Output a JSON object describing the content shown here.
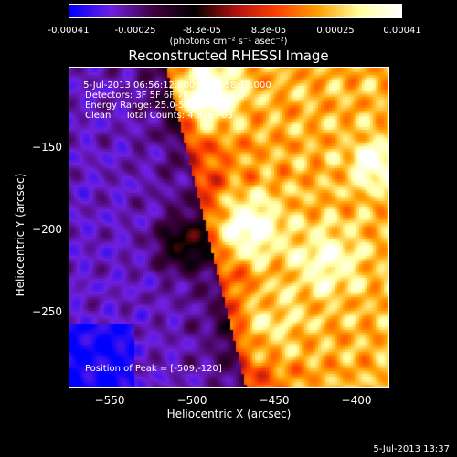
{
  "colorbar": {
    "ticks": [
      "-0.00041",
      "-0.00025",
      "-8.3e-05",
      "8.3e-05",
      "0.00025",
      "0.00041"
    ],
    "tick_values": [
      -0.00041,
      -0.00025,
      -8.3e-05,
      8.3e-05,
      0.00025,
      0.00041
    ],
    "units": "(photons cm⁻² s⁻¹ asec⁻²)",
    "colors": [
      "#0000ff",
      "#7020e0",
      "#400040",
      "#000000",
      "#b01010",
      "#ff4000",
      "#ffa000",
      "#ffffa0",
      "#ffffff"
    ]
  },
  "chart_data": {
    "type": "heatmap",
    "title": "Reconstructed RHESSI Image",
    "xlabel": "Heliocentric X (arcsec)",
    "ylabel": "Heliocentric Y (arcsec)",
    "xlim": [
      -575,
      -380
    ],
    "ylim": [
      -295,
      -100
    ],
    "xticks": [
      -550,
      -500,
      -450,
      -400
    ],
    "yticks": [
      -150,
      -200,
      -250
    ],
    "xtick_labels": [
      "−550",
      "−500",
      "−450",
      "−400"
    ],
    "ytick_labels": [
      "−150",
      "−200",
      "−250"
    ],
    "annotations": {
      "time_range": " 5-Jul-2013 06:56:12.000 to 06:58:12.000",
      "detectors": "Detectors: 3F 5F 6F 7F 8F 9F, Att 0",
      "energy": "Energy Range: 25.0-50.0 keV",
      "clean": "Clean     Total Counts: 4.32E+03",
      "peak": "Position of Peak = [-509,-120]"
    },
    "peak_position": [
      -509,
      -120
    ]
  },
  "footer": {
    "timestamp": "5-Jul-2013 13:37"
  }
}
